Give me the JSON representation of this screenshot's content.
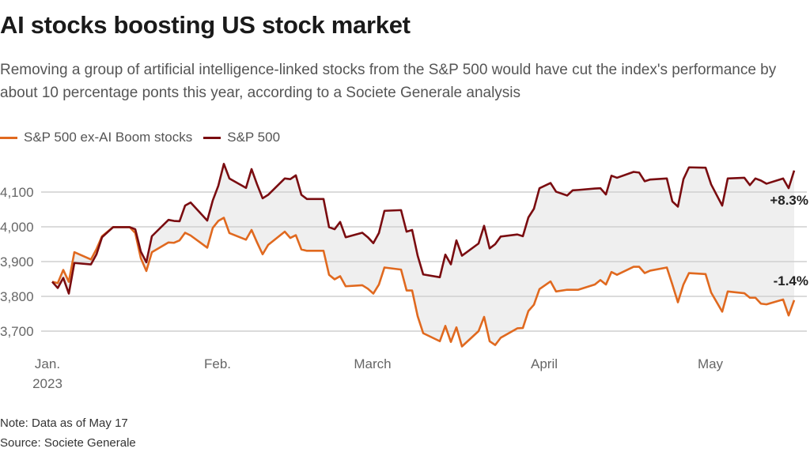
{
  "header": {
    "title": "AI stocks boosting US stock market",
    "subtitle": "Removing a group of artificial intelligence-linked stocks from the S&P 500 would have cut the index's performance by about 10 percentage ponts this year, according to a Societe Generale analysis"
  },
  "footer": {
    "note": "Note: Data as of May 17",
    "source": "Source: Societe Generale"
  },
  "chart_data": {
    "type": "line",
    "title": "AI stocks boosting US stock market",
    "xlabel": "",
    "ylabel": "",
    "ylim": [
      3620,
      4200
    ],
    "yticks": [
      3700,
      3800,
      3900,
      4000,
      4100
    ],
    "ytick_labels": [
      "3,700",
      "3,800",
      "3,900",
      "4,000",
      "4,100"
    ],
    "xticks": [
      {
        "date": "2023-01-01",
        "label": "Jan.",
        "sublabel": "2023"
      },
      {
        "date": "2023-02-01",
        "label": "Feb."
      },
      {
        "date": "2023-03-01",
        "label": "March"
      },
      {
        "date": "2023-04-01",
        "label": "April"
      },
      {
        "date": "2023-05-01",
        "label": "May"
      }
    ],
    "grid": true,
    "legend_placement": "top-left",
    "shaded_between_series": true,
    "fill_color": "#efefef",
    "x": [
      "2023-01-03",
      "2023-01-04",
      "2023-01-05",
      "2023-01-06",
      "2023-01-07",
      "2023-01-10",
      "2023-01-11",
      "2023-01-12",
      "2023-01-14",
      "2023-01-17",
      "2023-01-18",
      "2023-01-19",
      "2023-01-20",
      "2023-01-21",
      "2023-01-24",
      "2023-01-25",
      "2023-01-26",
      "2023-01-27",
      "2023-01-28",
      "2023-01-31",
      "2023-02-01",
      "2023-02-02",
      "2023-02-03",
      "2023-02-04",
      "2023-02-07",
      "2023-02-08",
      "2023-02-09",
      "2023-02-10",
      "2023-02-11",
      "2023-02-14",
      "2023-02-15",
      "2023-02-16",
      "2023-02-17",
      "2023-02-18",
      "2023-02-21",
      "2023-02-22",
      "2023-02-23",
      "2023-02-24",
      "2023-02-25",
      "2023-02-28",
      "2023-03-01",
      "2023-03-02",
      "2023-03-03",
      "2023-03-04",
      "2023-03-07",
      "2023-03-08",
      "2023-03-09",
      "2023-03-10",
      "2023-03-11",
      "2023-03-14",
      "2023-03-15",
      "2023-03-16",
      "2023-03-17",
      "2023-03-18",
      "2023-03-21",
      "2023-03-22",
      "2023-03-23",
      "2023-03-24",
      "2023-03-25",
      "2023-03-28",
      "2023-03-29",
      "2023-03-30",
      "2023-03-31",
      "2023-04-01",
      "2023-04-03",
      "2023-04-04",
      "2023-04-06",
      "2023-04-07",
      "2023-04-08",
      "2023-04-11",
      "2023-04-12",
      "2023-04-13",
      "2023-04-14",
      "2023-04-15",
      "2023-04-18",
      "2023-04-19",
      "2023-04-20",
      "2023-04-21",
      "2023-04-24",
      "2023-04-25",
      "2023-04-26",
      "2023-04-27",
      "2023-04-28",
      "2023-05-01",
      "2023-05-02",
      "2023-05-04",
      "2023-05-05",
      "2023-05-08",
      "2023-05-09",
      "2023-05-10",
      "2023-05-11",
      "2023-05-12",
      "2023-05-15",
      "2023-05-16",
      "2023-05-17"
    ],
    "series": [
      {
        "name": "S&P 500 ex-AI Boom stocks",
        "color": "#e0691f",
        "end_label": "-1.4%",
        "values": [
          3842,
          3838,
          3876,
          3842,
          3927,
          3906,
          3936,
          3973,
          3999,
          3999,
          3982,
          3910,
          3873,
          3927,
          3955,
          3954,
          3961,
          3983,
          3975,
          3940,
          3997,
          4017,
          4026,
          3982,
          3963,
          3991,
          3955,
          3921,
          3948,
          3986,
          3968,
          3976,
          3935,
          3931,
          3931,
          3862,
          3849,
          3858,
          3829,
          3832,
          3822,
          3808,
          3834,
          3883,
          3877,
          3817,
          3817,
          3743,
          3694,
          3671,
          3715,
          3669,
          3711,
          3656,
          3700,
          3741,
          3671,
          3660,
          3681,
          3708,
          3709,
          3758,
          3776,
          3821,
          3843,
          3814,
          3819,
          3819,
          3819,
          3834,
          3847,
          3834,
          3870,
          3862,
          3885,
          3885,
          3867,
          3874,
          3883,
          3834,
          3783,
          3834,
          3867,
          3864,
          3811,
          3756,
          3814,
          3809,
          3796,
          3796,
          3779,
          3777,
          3791,
          3745,
          3789
        ]
      },
      {
        "name": "S&P 500",
        "color": "#7a0c10",
        "end_label": "+8.3%",
        "values": [
          3842,
          3824,
          3853,
          3808,
          3896,
          3892,
          3921,
          3970,
          3999,
          3999,
          3993,
          3929,
          3898,
          3973,
          4020,
          4017,
          4016,
          4061,
          4070,
          4018,
          4076,
          4118,
          4181,
          4139,
          4112,
          4166,
          4122,
          4082,
          4092,
          4139,
          4137,
          4148,
          4092,
          4080,
          4080,
          3999,
          3993,
          4014,
          3970,
          3983,
          3970,
          3953,
          3982,
          4046,
          4048,
          3986,
          3991,
          3917,
          3863,
          3855,
          3920,
          3892,
          3961,
          3917,
          3952,
          4003,
          3938,
          3950,
          3972,
          3978,
          3973,
          4027,
          4052,
          4111,
          4126,
          4101,
          4090,
          4105,
          4106,
          4110,
          4111,
          4093,
          4147,
          4141,
          4158,
          4156,
          4131,
          4136,
          4139,
          4073,
          4058,
          4137,
          4171,
          4170,
          4122,
          4061,
          4139,
          4141,
          4120,
          4139,
          4133,
          4124,
          4139,
          4111,
          4162
        ]
      }
    ]
  }
}
